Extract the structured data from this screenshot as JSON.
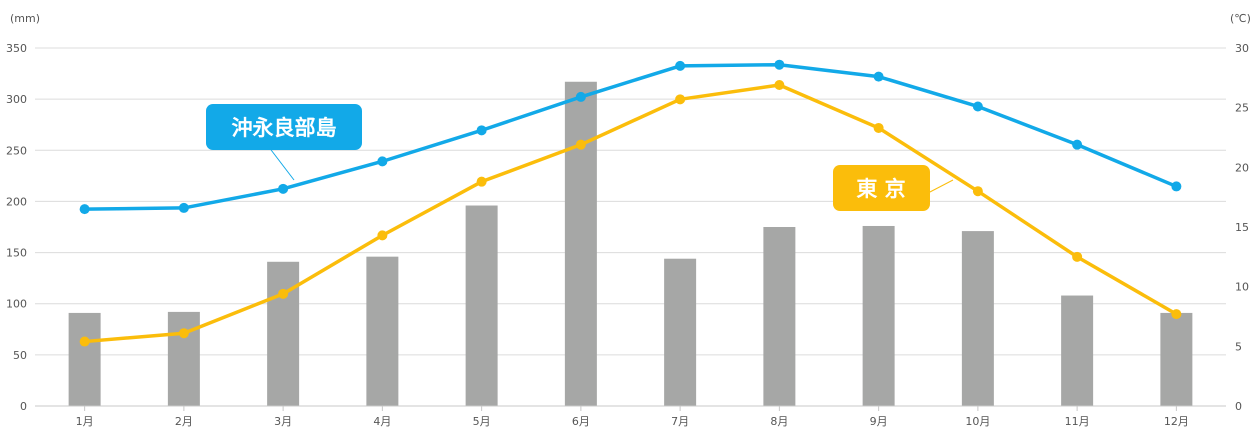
{
  "chart_data": {
    "type": "bar+line",
    "categories": [
      "1月",
      "2月",
      "3月",
      "4月",
      "5月",
      "6月",
      "7月",
      "8月",
      "9月",
      "10月",
      "11月",
      "12月"
    ],
    "left_axis": {
      "unit": "(mm)",
      "ylim": [
        0,
        350
      ],
      "ticks": [
        0,
        50,
        100,
        150,
        200,
        250,
        300,
        350
      ]
    },
    "right_axis": {
      "unit": "(℃)",
      "ylim": [
        0,
        30
      ],
      "ticks": [
        0,
        5,
        10,
        15,
        20,
        25,
        30
      ]
    },
    "bars": {
      "axis": "left",
      "color": "#a6a7a6",
      "values": [
        91,
        92,
        141,
        146,
        196,
        317,
        144,
        175,
        176,
        171,
        108,
        91
      ]
    },
    "series": [
      {
        "name": "沖永良部島",
        "axis": "right",
        "color": "#12a9e8",
        "values": [
          16.5,
          16.6,
          18.2,
          20.5,
          23.1,
          25.9,
          28.5,
          28.6,
          27.6,
          25.1,
          21.9,
          18.4
        ]
      },
      {
        "name": "東 京",
        "axis": "right",
        "color": "#fbbd0b",
        "values": [
          5.4,
          6.1,
          9.4,
          14.3,
          18.8,
          21.9,
          25.7,
          26.9,
          23.3,
          18.0,
          12.5,
          7.7
        ]
      }
    ],
    "grid": true,
    "legend": "callouts"
  }
}
